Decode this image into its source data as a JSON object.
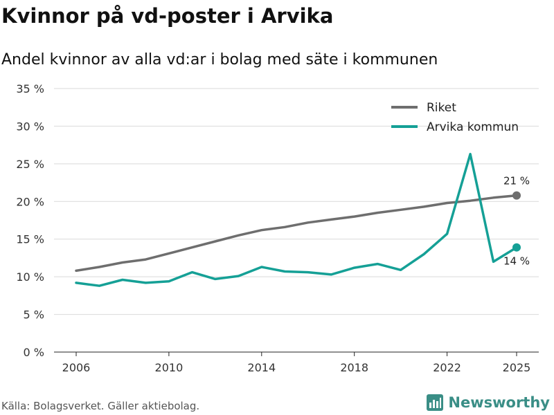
{
  "header": {
    "title": "Kvinnor på vd-poster i Arvika",
    "subtitle": "Andel kvinnor av alla vd:ar i bolag med säte i kommunen"
  },
  "footer": {
    "source": "Källa: Bolagsverket. Gäller aktiebolag.",
    "brand": "Newsworthy",
    "brand_color": "#3a8e86"
  },
  "chart_data": {
    "type": "line",
    "x": [
      2006,
      2007,
      2008,
      2009,
      2010,
      2011,
      2012,
      2013,
      2014,
      2015,
      2016,
      2017,
      2018,
      2019,
      2020,
      2021,
      2022,
      2023,
      2024,
      2025
    ],
    "series": [
      {
        "name": "Riket",
        "color": "#6e6e6e",
        "values": [
          10.8,
          11.3,
          11.9,
          12.3,
          13.1,
          13.9,
          14.7,
          15.5,
          16.2,
          16.6,
          17.2,
          17.6,
          18.0,
          18.5,
          18.9,
          19.3,
          19.8,
          20.1,
          20.5,
          20.8
        ],
        "end_label": "21 %"
      },
      {
        "name": "Arvika kommun",
        "color": "#15a096",
        "values": [
          9.2,
          8.8,
          9.6,
          9.2,
          9.4,
          10.6,
          9.7,
          10.1,
          11.3,
          10.7,
          10.6,
          10.3,
          11.2,
          11.7,
          10.9,
          13.0,
          15.7,
          26.3,
          12.0,
          13.9
        ],
        "end_label": "14 %"
      }
    ],
    "y_ticks": [
      0,
      5,
      10,
      15,
      20,
      25,
      30,
      35
    ],
    "y_tick_labels": [
      "0 %",
      "5 %",
      "10 %",
      "15 %",
      "20 %",
      "25 %",
      "30 %",
      "35 %"
    ],
    "x_ticks": [
      2006,
      2010,
      2014,
      2018,
      2022,
      2025
    ],
    "x_tick_labels": [
      "2006",
      "2010",
      "2014",
      "2018",
      "2022",
      "2025"
    ],
    "ylim": [
      0,
      35
    ],
    "xlim": [
      2006,
      2025
    ],
    "grid": true,
    "legend_position": "top-right"
  }
}
